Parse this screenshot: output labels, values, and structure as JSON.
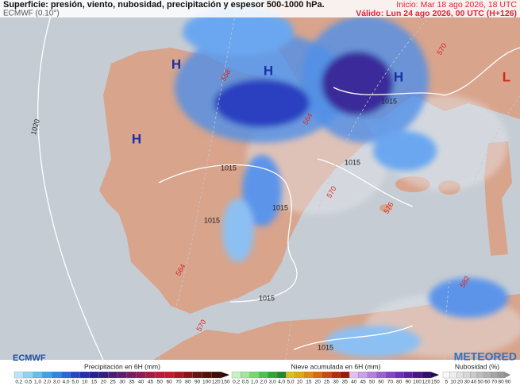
{
  "header": {
    "title": "Superficie: presión, viento, nubosidad, precipitación y espesor 500-1000 hPa.",
    "model": "ECMWF (0.10°)",
    "init": "Inicio: Mar 18 ago 2026, 18 UTC",
    "valid": "Válido: Lun 24 ago 2026, 00 UTC (H+126)"
  },
  "map": {
    "pressure_centers": [
      "H",
      "H",
      "H",
      "H",
      "L"
    ],
    "isobar_labels": [
      "1020",
      "1015",
      "1015",
      "1015",
      "1015",
      "1015",
      "1015",
      "1015"
    ],
    "thickness_labels": [
      "558",
      "564",
      "570",
      "570",
      "576",
      "564",
      "570",
      "582"
    ]
  },
  "footer": {
    "source": "ECMWF",
    "brand": "METEORED"
  },
  "legend": [
    {
      "title": "Precipitación en 6H (mm)",
      "labels": [
        "0,2",
        "0,5",
        "1,0",
        "2,0",
        "3,0",
        "4,0",
        "5,0",
        "10",
        "15",
        "20",
        "25",
        "30",
        "35",
        "40",
        "45",
        "50",
        "60",
        "70",
        "80",
        "90",
        "100",
        "120",
        "150"
      ]
    },
    {
      "title": "Nieve acumulada en 6H (mm)",
      "labels": [
        "0,2",
        "0,5",
        "1,0",
        "2,0",
        "3,0",
        "4,0",
        "5,0",
        "10",
        "15",
        "20",
        "25",
        "30",
        "35",
        "40",
        "45",
        "50",
        "60",
        "70",
        "80",
        "90",
        "100",
        "120",
        "150"
      ]
    },
    {
      "title": "Nubosidad (%)",
      "labels": [
        "5",
        "10",
        "20",
        "30",
        "40",
        "50",
        "60",
        "70",
        "80",
        "90"
      ]
    }
  ]
}
